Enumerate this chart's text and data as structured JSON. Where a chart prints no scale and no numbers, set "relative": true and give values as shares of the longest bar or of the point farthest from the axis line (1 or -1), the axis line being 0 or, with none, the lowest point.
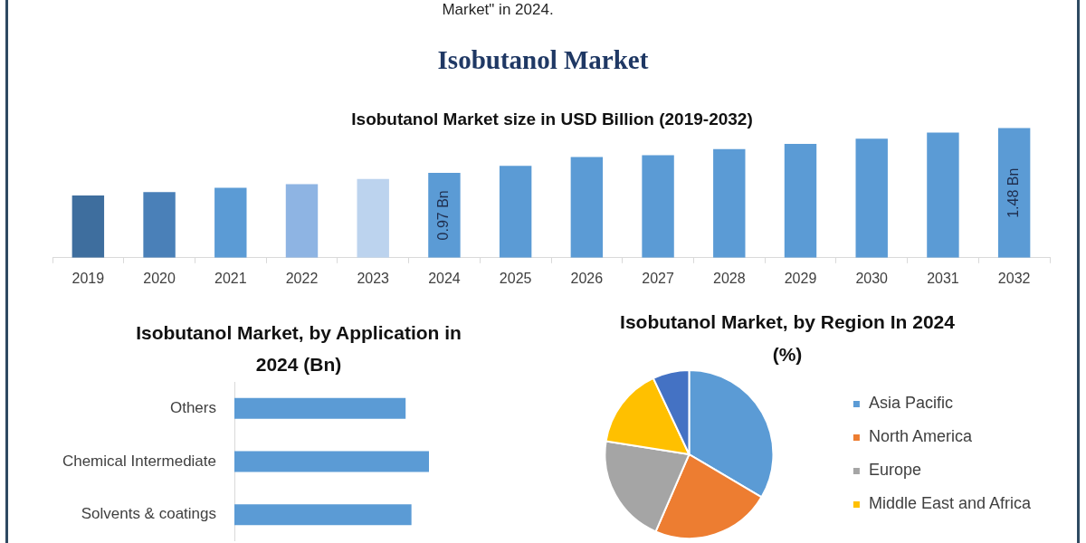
{
  "chart_data": [
    {
      "type": "other",
      "title": "Isobutanol Market",
      "annotations": [
        "Market\" in 2024."
      ]
    },
    {
      "type": "bar",
      "title": "Isobutanol Market size in USD Billion (2019-2032)",
      "categories": [
        "2019",
        "2020",
        "2021",
        "2022",
        "2023",
        "2024",
        "2025",
        "2026",
        "2027",
        "2028",
        "2029",
        "2030",
        "2031",
        "2032"
      ],
      "values": [
        0.71,
        0.75,
        0.8,
        0.84,
        0.9,
        0.97,
        1.05,
        1.15,
        1.17,
        1.24,
        1.3,
        1.36,
        1.43,
        1.48
      ],
      "colors": [
        "#3e6e9e",
        "#4a80b8",
        "#5b9bd5",
        "#8eb4e3",
        "#bcd3ee",
        "#5b9bd5",
        "#5b9bd5",
        "#5b9bd5",
        "#5b9bd5",
        "#5b9bd5",
        "#5b9bd5",
        "#5b9bd5",
        "#5b9bd5",
        "#5b9bd5"
      ],
      "value_labels": [
        null,
        null,
        null,
        null,
        null,
        "0.97 Bn",
        null,
        null,
        null,
        null,
        null,
        null,
        null,
        "1.48 Bn"
      ],
      "tick_labels": "x"
    },
    {
      "type": "bar",
      "orientation": "horizontal",
      "relative": true,
      "title": "Isobutanol Market, by Application in 2024 (Bn)",
      "categories": [
        "Others",
        "Chemical Intermediate",
        "Solvents & coatings"
      ],
      "values": [
        0.88,
        1,
        0.91
      ],
      "color": "#5b9bd5"
    },
    {
      "type": "pie",
      "title": "Isobutanol Market, by Region In 2024 (%)",
      "categories": [
        "Asia Pacific",
        "North America",
        "Europe",
        "Middle East and Africa",
        null
      ],
      "values": [
        33.5,
        23,
        21,
        15.5,
        7
      ],
      "colors": [
        "#5b9bd5",
        "#ed7d31",
        "#a5a5a5",
        "#ffc000",
        "#4472c4"
      ],
      "legend": "right"
    }
  ]
}
